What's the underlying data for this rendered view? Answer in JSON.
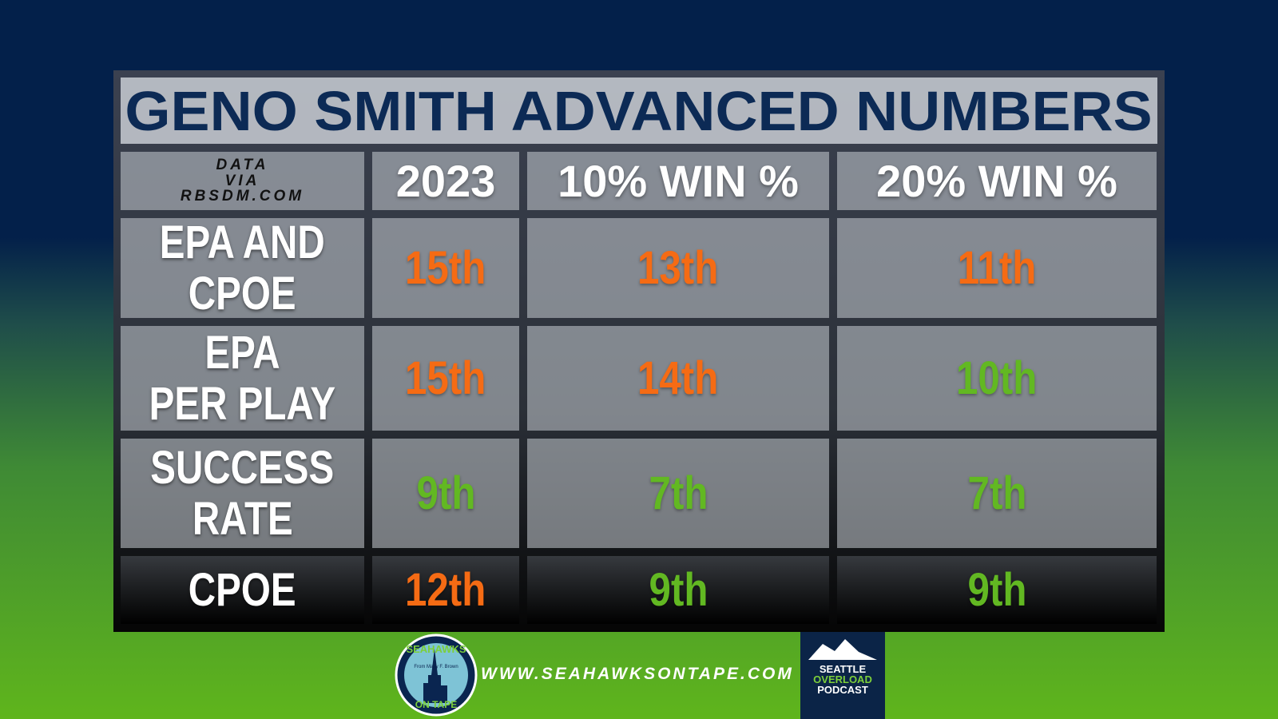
{
  "title": "GENO SMITH ADVANCED NUMBERS",
  "table": {
    "corner_lines": [
      "DATA",
      "VIA",
      "RBSDM.COM"
    ],
    "columns": [
      "2023",
      "10% WIN %",
      "20% WIN %"
    ],
    "rows": [
      {
        "label_lines": [
          "EPA AND",
          "CPOE"
        ],
        "cells": [
          {
            "text": "15th",
            "color": "#f56b14"
          },
          {
            "text": "13th",
            "color": "#f56b14"
          },
          {
            "text": "11th",
            "color": "#f56b14"
          }
        ]
      },
      {
        "label_lines": [
          "EPA",
          "PER PLAY"
        ],
        "cells": [
          {
            "text": "15th",
            "color": "#f56b14"
          },
          {
            "text": "14th",
            "color": "#f56b14"
          },
          {
            "text": "10th",
            "color": "#62b822"
          }
        ]
      },
      {
        "label_lines": [
          "SUCCESS",
          "RATE"
        ],
        "cells": [
          {
            "text": "9th",
            "color": "#62b822"
          },
          {
            "text": "7th",
            "color": "#62b822"
          },
          {
            "text": "7th",
            "color": "#62b822"
          }
        ]
      },
      {
        "label_lines": [
          "CPOE"
        ],
        "cells": [
          {
            "text": "12th",
            "color": "#f56b14"
          },
          {
            "text": "9th",
            "color": "#62b822"
          },
          {
            "text": "9th",
            "color": "#62b822"
          }
        ]
      }
    ]
  },
  "footer": {
    "website": "WWW.SEAHAWKSONTAPE.COM",
    "logo_left": {
      "top": "SEAHAWKS",
      "middle": "From Matty F. Brown",
      "bottom": "ON TAPE"
    },
    "logo_right": {
      "lines": [
        "SEATTLE",
        "OVERLOAD",
        "PODCAST"
      ]
    }
  }
}
